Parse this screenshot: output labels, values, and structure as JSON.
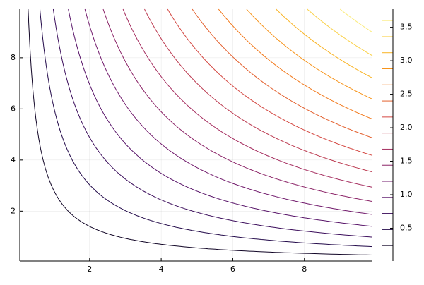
{
  "chart_data": {
    "type": "contour",
    "levels": [
      0.24,
      0.48,
      0.72,
      0.96,
      1.2,
      1.44,
      1.68,
      1.92,
      2.16,
      2.4,
      2.64,
      2.88,
      3.12,
      3.36,
      3.6
    ],
    "xlim": [
      0.05,
      9.9
    ],
    "ylim": [
      0.05,
      9.9
    ],
    "xticks": [
      2,
      4,
      6,
      8
    ],
    "yticks": [
      2,
      4,
      6,
      8
    ],
    "zlim": [
      0.01,
      3.77
    ],
    "zticks": [
      0.5,
      {
        "value": 1,
        "label": "1.0"
      },
      1.5,
      {
        "value": 2,
        "label": "2.0"
      },
      2.5,
      {
        "value": 3,
        "label": "3.0"
      },
      3.5
    ],
    "colormap": "inferno",
    "grid": true
  }
}
